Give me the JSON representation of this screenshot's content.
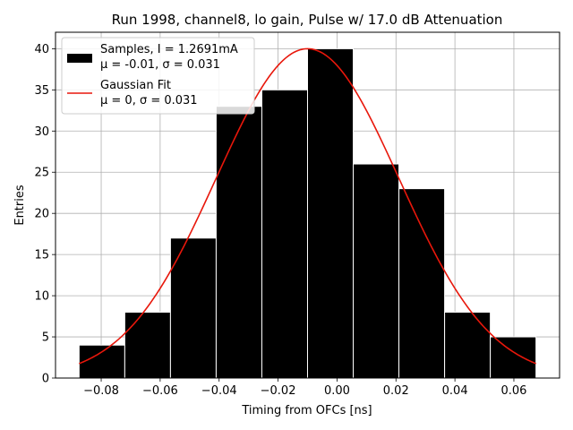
{
  "chart_data": {
    "type": "bar",
    "title": "Run 1998, channel8, lo gain, Pulse w/ 17.0 dB Attenuation",
    "xlabel": "Timing from OFCs [ns]",
    "ylabel": "Entries",
    "xlim": [
      -0.0955,
      0.0755
    ],
    "ylim": [
      0,
      42
    ],
    "xticks": [
      -0.08,
      -0.06,
      -0.04,
      -0.02,
      0.0,
      0.02,
      0.04,
      0.06
    ],
    "xtick_labels": [
      "−0.08",
      "−0.06",
      "−0.04",
      "−0.02",
      "0.00",
      "0.02",
      "0.04",
      "0.06"
    ],
    "yticks": [
      0,
      5,
      10,
      15,
      20,
      25,
      30,
      35,
      40
    ],
    "ytick_labels": [
      "0",
      "5",
      "10",
      "15",
      "20",
      "25",
      "30",
      "35",
      "40"
    ],
    "grid": true,
    "legend_position": "top-left",
    "bins": {
      "edges": [
        -0.0875,
        -0.072,
        -0.0565,
        -0.041,
        -0.0255,
        -0.01,
        0.0055,
        0.021,
        0.0365,
        0.052,
        0.0675
      ],
      "counts": [
        4,
        8,
        17,
        33,
        35,
        40,
        26,
        23,
        8,
        5
      ],
      "color": "#000000",
      "edge_color": "#ffffff"
    },
    "series": [
      {
        "name": "Samples, I = 1.2691mA",
        "name_line2": "μ = -0.01, σ = 0.031",
        "kind": "histogram",
        "color": "#000000"
      },
      {
        "name": "Gaussian Fit",
        "name_line2": "μ = 0, σ = 0.031",
        "kind": "line",
        "color": "#e8170b",
        "amplitude": 40,
        "mean": -0.01,
        "sigma": 0.031,
        "x_range": [
          -0.0875,
          0.0675
        ]
      }
    ]
  }
}
